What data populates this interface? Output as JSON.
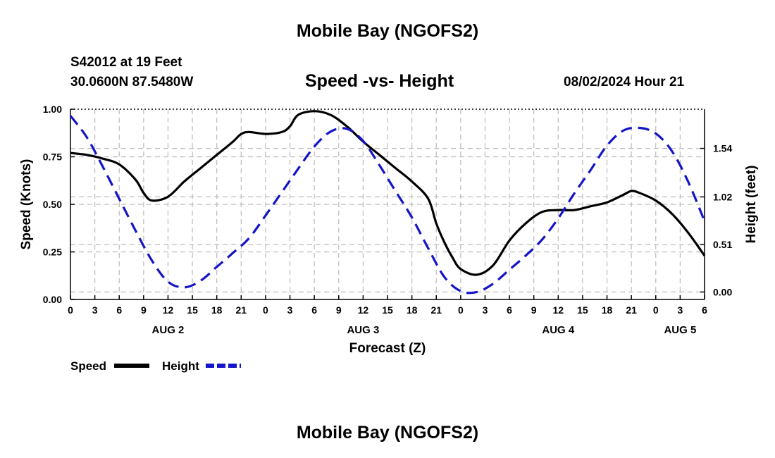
{
  "page": {
    "top_title": "Mobile Bay (NGOFS2)",
    "bottom_title": "Mobile Bay (NGOFS2)",
    "station_line1": "S42012 at 19 Feet",
    "station_line2": "30.0600N  87.5480W",
    "subtitle": "Speed -vs- Height",
    "date_label": "08/02/2024 Hour 21"
  },
  "chart_data": {
    "type": "line",
    "title": "Speed -vs- Height",
    "xlabel": "Forecast (Z)",
    "ylabel": "Speed (Knots)",
    "y2label": "Height (feet)",
    "x_unit": "hours from AUG 2 00Z",
    "xlim": [
      -9,
      69
    ],
    "ylim": [
      0,
      1.0
    ],
    "y2lim": [
      -0.08,
      1.96
    ],
    "x_ticks": [
      {
        "x": -9,
        "label": "0"
      },
      {
        "x": -6,
        "label": "3"
      },
      {
        "x": -3,
        "label": "6"
      },
      {
        "x": 0,
        "label": "9"
      },
      {
        "x": 3,
        "label": "12"
      },
      {
        "x": 6,
        "label": "15"
      },
      {
        "x": 9,
        "label": "18"
      },
      {
        "x": 12,
        "label": "21"
      },
      {
        "x": 15,
        "label": "0"
      },
      {
        "x": 18,
        "label": "3"
      },
      {
        "x": 21,
        "label": "6"
      },
      {
        "x": 24,
        "label": "9"
      },
      {
        "x": 27,
        "label": "12"
      },
      {
        "x": 30,
        "label": "15"
      },
      {
        "x": 33,
        "label": "18"
      },
      {
        "x": 36,
        "label": "21"
      },
      {
        "x": 39,
        "label": "0"
      },
      {
        "x": 42,
        "label": "3"
      },
      {
        "x": 45,
        "label": "6"
      },
      {
        "x": 48,
        "label": "9"
      },
      {
        "x": 51,
        "label": "12"
      },
      {
        "x": 54,
        "label": "15"
      },
      {
        "x": 57,
        "label": "18"
      },
      {
        "x": 60,
        "label": "21"
      },
      {
        "x": 63,
        "label": "0"
      },
      {
        "x": 66,
        "label": "3"
      },
      {
        "x": 69,
        "label": "6"
      }
    ],
    "date_labels": [
      {
        "x": 3,
        "label": "AUG 2"
      },
      {
        "x": 27,
        "label": "AUG 3"
      },
      {
        "x": 51,
        "label": "AUG 4"
      },
      {
        "x": 66,
        "label": "AUG 5"
      }
    ],
    "y_ticks": [
      {
        "y": 0.0,
        "label": "0.00"
      },
      {
        "y": 0.25,
        "label": "0.25"
      },
      {
        "y": 0.5,
        "label": "0.50"
      },
      {
        "y": 0.75,
        "label": "0.75"
      },
      {
        "y": 1.0,
        "label": "1.00"
      }
    ],
    "y2_ticks": [
      {
        "y": 0.0,
        "label": "0.00"
      },
      {
        "y": 0.51,
        "label": "0.51"
      },
      {
        "y": 1.02,
        "label": "1.02"
      },
      {
        "y": 1.54,
        "label": "1.54"
      }
    ],
    "grid": true,
    "series": [
      {
        "name": "Speed",
        "axis": "left",
        "color": "#000000",
        "dash": "solid",
        "x": [
          -9,
          -7,
          -5,
          -3,
          -1,
          0,
          1,
          3,
          5,
          7,
          9,
          11,
          12,
          13,
          15,
          17,
          18,
          19,
          21,
          23,
          25,
          27,
          29,
          31,
          33,
          35,
          36,
          37,
          38,
          39,
          41,
          43,
          45,
          47,
          49,
          51,
          53,
          55,
          57,
          59,
          60,
          61,
          63,
          65,
          67,
          69
        ],
        "values": [
          0.77,
          0.76,
          0.74,
          0.71,
          0.63,
          0.56,
          0.52,
          0.54,
          0.62,
          0.69,
          0.76,
          0.83,
          0.87,
          0.88,
          0.87,
          0.88,
          0.91,
          0.97,
          0.99,
          0.97,
          0.91,
          0.83,
          0.76,
          0.69,
          0.62,
          0.53,
          0.4,
          0.3,
          0.22,
          0.16,
          0.13,
          0.18,
          0.31,
          0.4,
          0.46,
          0.47,
          0.47,
          0.49,
          0.51,
          0.55,
          0.57,
          0.56,
          0.52,
          0.45,
          0.35,
          0.23
        ]
      },
      {
        "name": "Height",
        "axis": "right",
        "color": "#1414c8",
        "dash": "dashed",
        "x": [
          -9,
          -7,
          -5,
          -3,
          -1,
          1,
          3,
          5,
          7,
          9,
          11,
          13,
          15,
          17,
          19,
          21,
          23,
          25,
          27,
          29,
          31,
          33,
          35,
          37,
          39,
          41,
          43,
          45,
          47,
          49,
          51,
          53,
          55,
          57,
          59,
          61,
          63,
          65,
          67,
          69
        ],
        "values": [
          1.89,
          1.66,
          1.34,
          1.0,
          0.66,
          0.34,
          0.11,
          0.05,
          0.12,
          0.27,
          0.42,
          0.58,
          0.82,
          1.07,
          1.32,
          1.56,
          1.72,
          1.75,
          1.62,
          1.36,
          1.08,
          0.8,
          0.47,
          0.16,
          0.01,
          0.0,
          0.09,
          0.24,
          0.39,
          0.56,
          0.79,
          1.06,
          1.31,
          1.57,
          1.73,
          1.76,
          1.7,
          1.51,
          1.18,
          0.76
        ]
      }
    ]
  },
  "legend": {
    "speed_label": "Speed",
    "height_label": "Height"
  }
}
